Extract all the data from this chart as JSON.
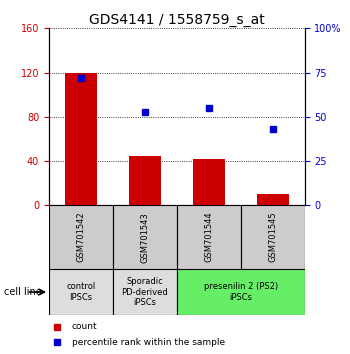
{
  "title": "GDS4141 / 1558759_s_at",
  "samples": [
    "GSM701542",
    "GSM701543",
    "GSM701544",
    "GSM701545"
  ],
  "bar_values": [
    120,
    45,
    42,
    10
  ],
  "percentile_values": [
    72,
    53,
    55,
    43
  ],
  "left_ylim": [
    0,
    160
  ],
  "left_yticks": [
    0,
    40,
    80,
    120,
    160
  ],
  "right_ylim": [
    0,
    100
  ],
  "right_yticks": [
    0,
    25,
    50,
    75,
    100
  ],
  "bar_color": "#cc0000",
  "dot_color": "#0000cc",
  "groups": [
    {
      "label": "control\nIPSCs",
      "indices": [
        0
      ],
      "color": "#dddddd"
    },
    {
      "label": "Sporadic\nPD-derived\niPSCs",
      "indices": [
        1
      ],
      "color": "#dddddd"
    },
    {
      "label": "presenilin 2 (PS2)\niPSCs",
      "indices": [
        2,
        3
      ],
      "color": "#66ee66"
    }
  ],
  "legend_items": [
    {
      "color": "#cc0000",
      "label": "count"
    },
    {
      "color": "#0000cc",
      "label": "percentile rank within the sample"
    }
  ],
  "cell_line_label": "cell line",
  "title_fontsize": 10,
  "tick_fontsize": 7,
  "label_fontsize": 7
}
